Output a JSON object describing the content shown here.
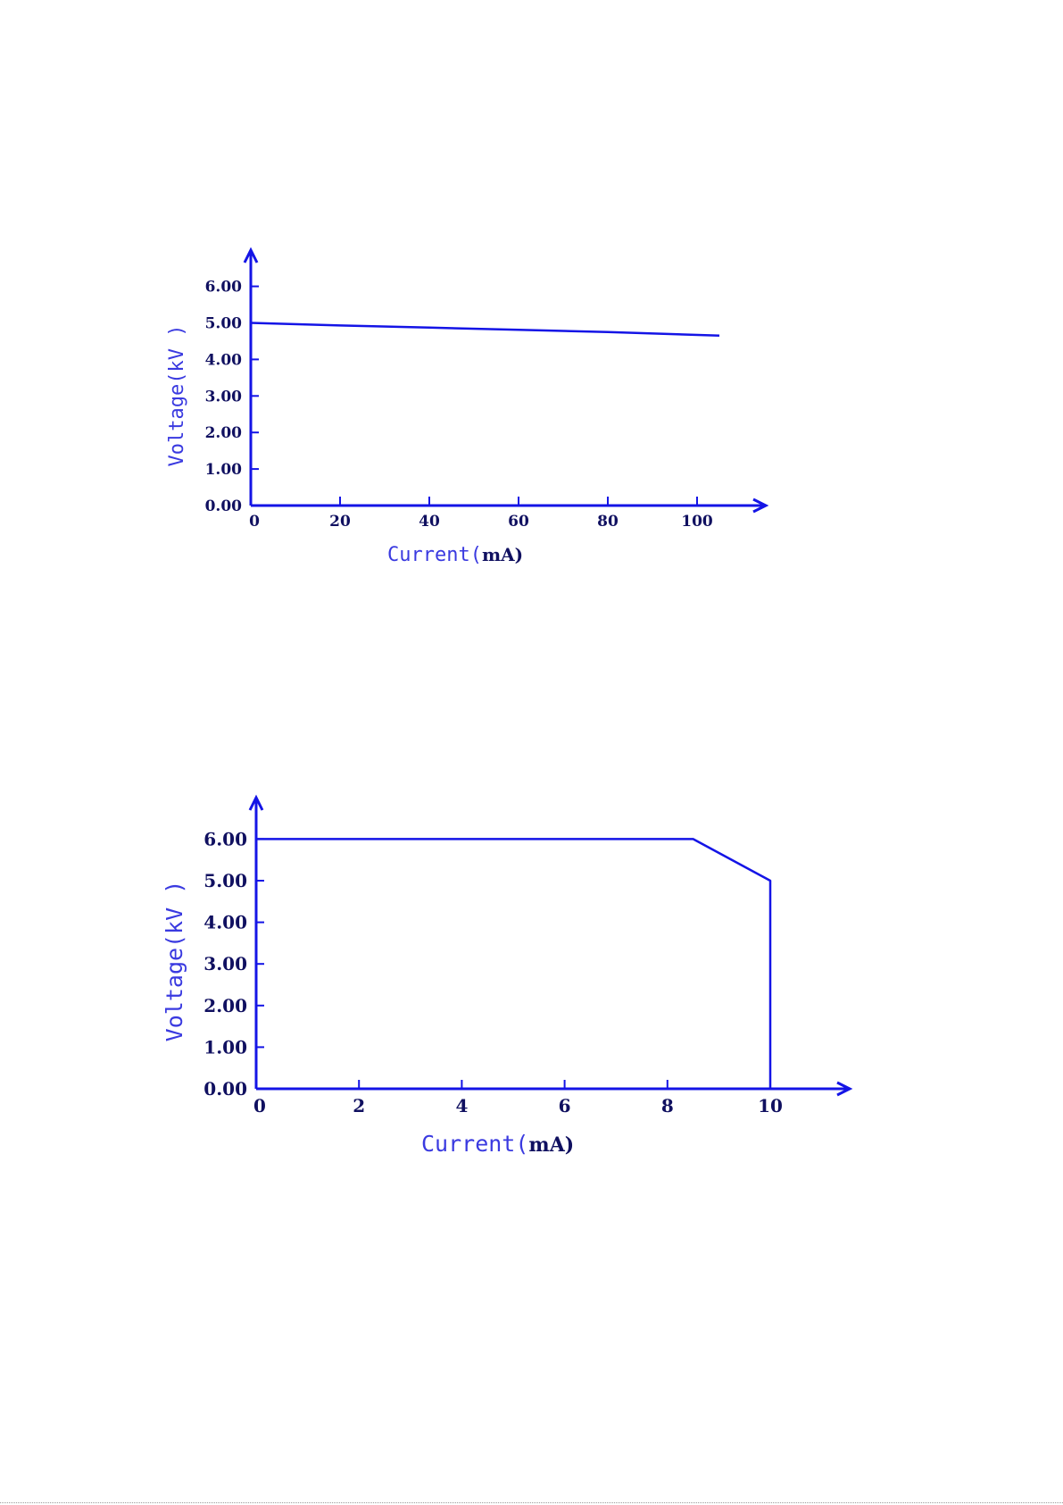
{
  "chart_data": [
    {
      "type": "line",
      "xlabel": "Current",
      "xunit": "mA",
      "ylabel": "Voltage",
      "yunit": "kV",
      "xticks": [
        0,
        20,
        40,
        60,
        80,
        100
      ],
      "yticks": [
        "0.00",
        "1.00",
        "2.00",
        "3.00",
        "4.00",
        "5.00",
        "6.00"
      ],
      "xlim": [
        0,
        115
      ],
      "ylim": [
        0,
        7
      ],
      "grid": false,
      "x": [
        0,
        20,
        40,
        60,
        80,
        105
      ],
      "y": [
        5.0,
        4.93,
        4.87,
        4.81,
        4.75,
        4.65
      ]
    },
    {
      "type": "line",
      "xlabel": "Current",
      "xunit": "mA",
      "ylabel": "Voltage",
      "yunit": "kV",
      "xticks": [
        0,
        2,
        4,
        6,
        8,
        10
      ],
      "yticks": [
        "0.00",
        "1.00",
        "2.00",
        "3.00",
        "4.00",
        "5.00",
        "6.00"
      ],
      "xlim": [
        0,
        11.5
      ],
      "ylim": [
        0,
        7
      ],
      "grid": false,
      "x": [
        0,
        8.5,
        10,
        10
      ],
      "y": [
        6.0,
        6.0,
        5.0,
        0.0
      ]
    }
  ]
}
